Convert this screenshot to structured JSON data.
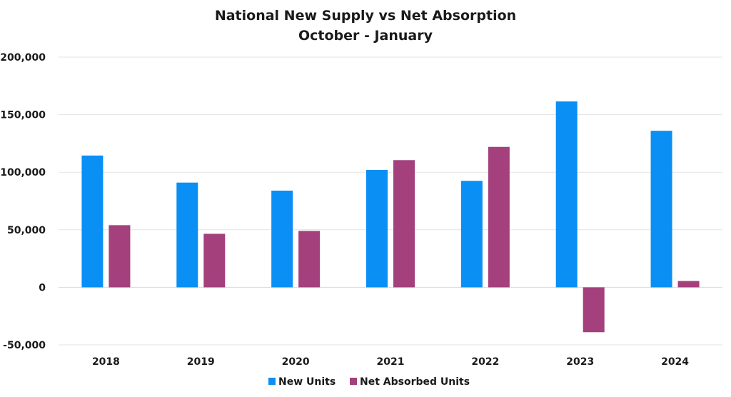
{
  "chart_data": {
    "type": "bar",
    "title": "National New Supply vs Net Absorption",
    "subtitle": "October - January",
    "categories": [
      "2018",
      "2019",
      "2020",
      "2021",
      "2022",
      "2023",
      "2024"
    ],
    "series": [
      {
        "name": "New Units",
        "color": "#0a8ff5",
        "values": [
          114500,
          91000,
          84000,
          102000,
          92500,
          161500,
          136000
        ]
      },
      {
        "name": "Net Absorbed Units",
        "color": "#a4407c",
        "values": [
          54000,
          46500,
          49000,
          110500,
          122000,
          -39000,
          5500
        ]
      }
    ],
    "ylim": [
      -50000,
      200000
    ],
    "yticks": [
      200000,
      150000,
      100000,
      50000,
      0,
      -50000
    ],
    "ytick_labels": [
      "200,000",
      "150,000",
      "100,000",
      "50,000",
      "0",
      "-50,000"
    ],
    "grid": true,
    "legend_position": "bottom-center",
    "xlabel": "",
    "ylabel": ""
  }
}
